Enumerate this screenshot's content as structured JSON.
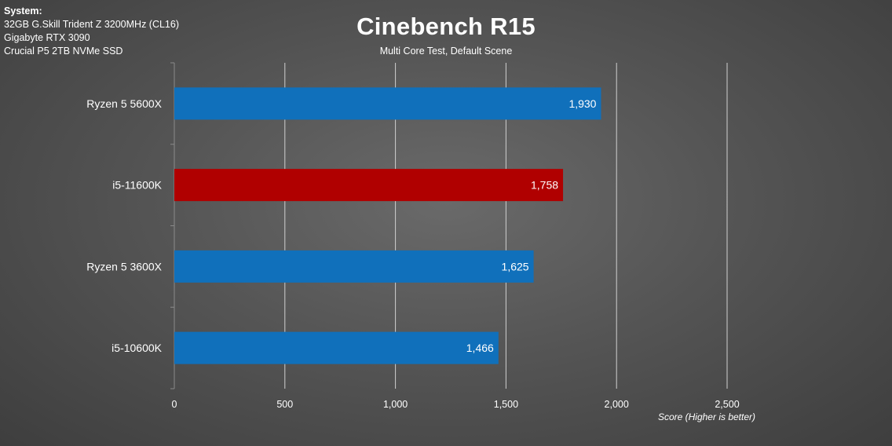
{
  "system": {
    "header": "System:",
    "lines": [
      "32GB G.Skill Trident Z 3200MHz (CL16)",
      "Gigabyte RTX 3090",
      "Crucial P5 2TB NVMe SSD"
    ]
  },
  "chart_data": {
    "type": "bar",
    "orientation": "horizontal",
    "title": "Cinebench R15",
    "subtitle": "Multi Core Test, Default Scene",
    "xlabel": "Score (Higher is better)",
    "ylabel": "",
    "categories": [
      "Ryzen 5 5600X",
      "i5-11600K",
      "Ryzen 5 3600X",
      "i5-10600K"
    ],
    "values": [
      1930,
      1758,
      1625,
      1466
    ],
    "value_labels": [
      "1,930",
      "1,758",
      "1,625",
      "1,466"
    ],
    "bar_colors": [
      "#1070bb",
      "#b00000",
      "#1070bb",
      "#1070bb"
    ],
    "xlim": [
      0,
      2500
    ],
    "ticks": [
      0,
      500,
      1000,
      1500,
      2000,
      2500
    ],
    "tick_labels": [
      "0",
      "500",
      "1,000",
      "1,500",
      "2,000",
      "2,500"
    ],
    "grid": true,
    "legend": "none"
  },
  "colors": {
    "primary_bar": "#1070bb",
    "highlight_bar": "#b00000",
    "gridline": "#d0d0d0"
  }
}
